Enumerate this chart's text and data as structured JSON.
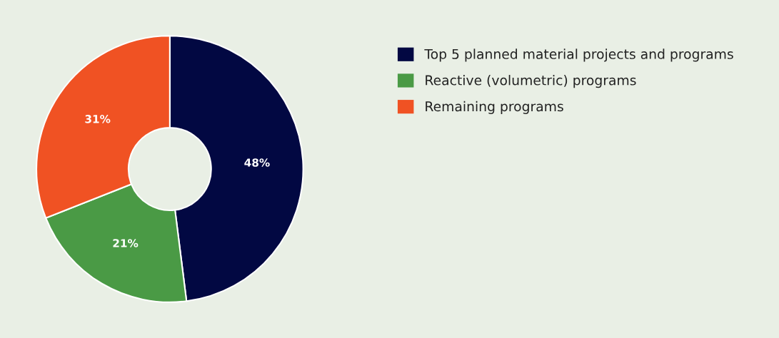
{
  "chart_data": {
    "type": "donut",
    "categories": [
      "Top 5 planned material projects and programs",
      "Reactive (volumetric) programs",
      "Remaining programs"
    ],
    "values": [
      48,
      21,
      31
    ],
    "colors": [
      "#020842",
      "#4a9a45",
      "#f05223"
    ],
    "value_labels": [
      "48%",
      "21%",
      "31%"
    ],
    "legend": "right"
  }
}
